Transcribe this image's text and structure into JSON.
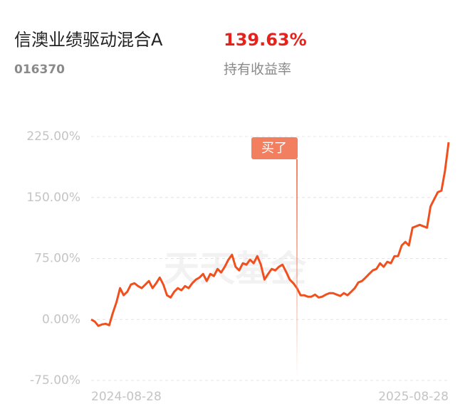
{
  "header": {
    "title": "信澳业绩驱动混合A",
    "code": "016370",
    "return_value": "139.63%",
    "return_label": "持有收益率"
  },
  "chart_data": {
    "type": "line",
    "categories": [
      "2024-08-28",
      null,
      null,
      null,
      null,
      null,
      null,
      null,
      null,
      null,
      null,
      null,
      null,
      null,
      null,
      null,
      null,
      null,
      null,
      null,
      null,
      null,
      null,
      null,
      null,
      null,
      null,
      null,
      null,
      null,
      null,
      null,
      null,
      null,
      null,
      null,
      null,
      null,
      null,
      null,
      null,
      null,
      null,
      null,
      null,
      null,
      null,
      null,
      null,
      null,
      null,
      null,
      null,
      null,
      null,
      null,
      null,
      null,
      null,
      null,
      null,
      null,
      null,
      null,
      null,
      null,
      null,
      null,
      null,
      null,
      null,
      null,
      null,
      null,
      null,
      null,
      null,
      null,
      null,
      null,
      null,
      null,
      null,
      null,
      null,
      null,
      null,
      null,
      null,
      null,
      null,
      null,
      null,
      null,
      null,
      null,
      null,
      null,
      null,
      "2025-08-28"
    ],
    "series": [
      {
        "color": "#f0501e",
        "values": [
          0,
          -2.6,
          -7.9,
          -6.1,
          -5.3,
          -7,
          7.9,
          21,
          38.5,
          29.8,
          34.1,
          42.9,
          44.6,
          41.1,
          38.5,
          42.9,
          47.3,
          38.5,
          44.6,
          51.6,
          42.9,
          29.8,
          27.1,
          34.1,
          38.5,
          35.9,
          41.1,
          38.5,
          44.6,
          49,
          51.6,
          56,
          47.3,
          56,
          53.4,
          62.1,
          57.8,
          64.8,
          73.5,
          79.6,
          64.8,
          60.4,
          69.1,
          67.4,
          73.5,
          69.1,
          77.9,
          67.4,
          49,
          56,
          62.1,
          60.4,
          64.8,
          67.4,
          58.6,
          49,
          44.6,
          38.5,
          29.8,
          29.8,
          28,
          28,
          30.6,
          27.1,
          28,
          30.6,
          32.4,
          32.4,
          30.6,
          28.9,
          32.4,
          29.8,
          34.1,
          38.5,
          45.5,
          47.3,
          51.6,
          56,
          60.4,
          62.1,
          69.1,
          64.8,
          70.9,
          69.1,
          77.9,
          77.9,
          91,
          95.4,
          91,
          112.9,
          114.6,
          116.4,
          114.6,
          112.9,
          139.1,
          147.9,
          156.6,
          158.4,
          182.9,
          217.9
        ]
      }
    ],
    "ylim": [
      -75,
      225
    ],
    "yticks": [
      {
        "value": -75,
        "label": "-75.00%"
      },
      {
        "value": 0,
        "label": "0.00%"
      },
      {
        "value": 75,
        "label": "75.00%"
      },
      {
        "value": 150,
        "label": "150.00%"
      },
      {
        "value": 225,
        "label": "225.00%"
      }
    ],
    "grid": true,
    "annotation": "买了",
    "watermark": "天天基金"
  }
}
